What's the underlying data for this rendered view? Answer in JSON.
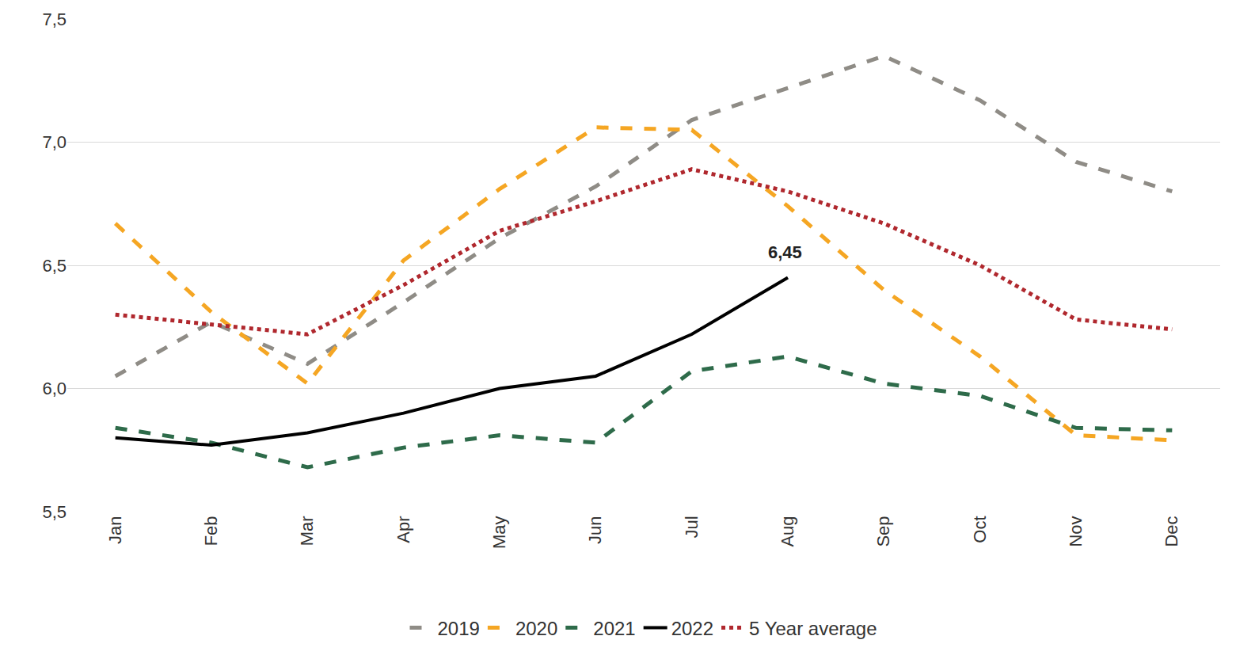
{
  "chart_data": {
    "type": "line",
    "categories": [
      "Jan",
      "Feb",
      "Mar",
      "Apr",
      "May",
      "Jun",
      "Jul",
      "Aug",
      "Sep",
      "Oct",
      "Nov",
      "Dec"
    ],
    "series": [
      {
        "name": "2019",
        "color": "#8f8c86",
        "line_style": "dash",
        "values": [
          6.05,
          6.27,
          6.1,
          6.35,
          6.61,
          6.82,
          7.09,
          7.22,
          7.35,
          7.17,
          6.92,
          6.8
        ]
      },
      {
        "name": "2020",
        "color": "#f5a623",
        "line_style": "dash",
        "values": [
          6.67,
          6.31,
          6.02,
          6.52,
          6.81,
          7.06,
          7.05,
          6.74,
          6.4,
          6.13,
          5.81,
          5.79
        ]
      },
      {
        "name": "2021",
        "color": "#2e6b4a",
        "line_style": "dash",
        "values": [
          5.84,
          5.78,
          5.68,
          5.76,
          5.81,
          5.78,
          6.07,
          6.13,
          6.02,
          5.97,
          5.84,
          5.83
        ]
      },
      {
        "name": "2022",
        "color": "#000000",
        "line_style": "solid",
        "values": [
          5.8,
          5.77,
          5.82,
          5.9,
          6.0,
          6.05,
          6.22,
          6.45,
          null,
          null,
          null,
          null
        ]
      },
      {
        "name": "5 Year average",
        "color": "#b0282e",
        "line_style": "dot",
        "values": [
          6.3,
          6.26,
          6.22,
          6.42,
          6.64,
          6.76,
          6.89,
          6.8,
          6.67,
          6.5,
          6.28,
          6.24
        ]
      }
    ],
    "annotations": [
      {
        "text": "6,45",
        "x": "Aug",
        "y": 6.45
      }
    ],
    "ylim": [
      5.5,
      7.5
    ],
    "yticks": [
      {
        "value": 5.5,
        "label": "5,5"
      },
      {
        "value": 6.0,
        "label": "6,0"
      },
      {
        "value": 6.5,
        "label": "6,5"
      },
      {
        "value": 7.0,
        "label": "7,0"
      },
      {
        "value": 7.5,
        "label": "7,5"
      }
    ],
    "grid": true,
    "legend": "bottom"
  }
}
